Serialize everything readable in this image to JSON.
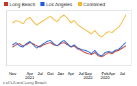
{
  "chart_data": {
    "type": "line",
    "categories": [
      "Nov",
      null,
      null,
      null,
      null,
      "Apr\n2021",
      null,
      null,
      "Jul",
      null,
      null,
      "Oct",
      null,
      null,
      "Jan",
      null,
      null,
      "Apr",
      null,
      null,
      "Jul",
      null,
      "Sep\n2022",
      null,
      null,
      null,
      null,
      "Feb\n2023",
      null,
      "Apr",
      null,
      null,
      "Jul",
      null
    ],
    "series": [
      {
        "name": "Long Beach",
        "color": "#c0392b",
        "values": [
          34,
          38,
          40,
          36,
          38,
          42,
          40,
          36,
          34,
          38,
          40,
          42,
          38,
          36,
          40,
          42,
          38,
          34,
          36,
          30,
          28,
          24,
          22,
          20,
          24,
          18,
          16,
          20,
          24,
          22,
          26,
          28,
          32,
          36
        ]
      },
      {
        "name": "Los Angeles",
        "color": "#1f5fd6",
        "values": [
          38,
          42,
          36,
          34,
          40,
          44,
          38,
          32,
          36,
          40,
          44,
          46,
          40,
          36,
          42,
          46,
          40,
          34,
          38,
          32,
          30,
          28,
          26,
          22,
          28,
          20,
          18,
          24,
          26,
          24,
          28,
          30,
          36,
          42
        ]
      },
      {
        "name": "Combined",
        "color": "#f2b632",
        "values": [
          78,
          82,
          80,
          76,
          84,
          88,
          80,
          74,
          78,
          82,
          86,
          90,
          84,
          80,
          88,
          92,
          86,
          78,
          82,
          74,
          70,
          66,
          62,
          58,
          64,
          56,
          52,
          58,
          62,
          60,
          66,
          70,
          80,
          92
        ]
      }
    ],
    "ylim": [
      0,
      100
    ],
    "tick_labels": "x",
    "legend": "top-left",
    "caption": "s of LA and Long Beach"
  }
}
